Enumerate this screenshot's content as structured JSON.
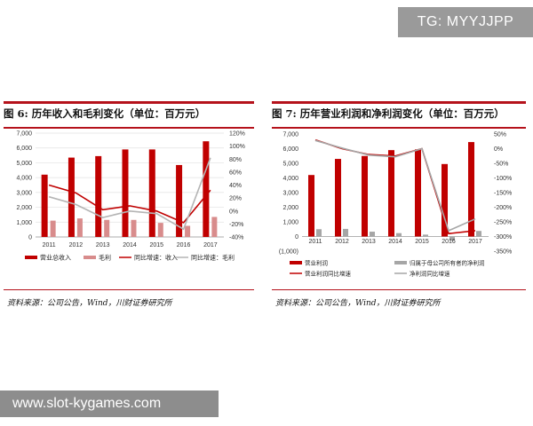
{
  "watermark_top": "TG: MYYJJPP",
  "watermark_bottom": "www.slot-kygames.com",
  "chart_data": [
    {
      "type": "bar",
      "title": "图 6:  历年收入和毛利变化（单位：百万元）",
      "source": "资料来源：公司公告，Wind，川财证券研究所",
      "categories": [
        "2011",
        "2012",
        "2013",
        "2014",
        "2015",
        "2016",
        "2017"
      ],
      "y_ticks": [
        "0",
        "1,000",
        "2,000",
        "3,000",
        "4,000",
        "5,000",
        "6,000",
        "7,000"
      ],
      "y2_ticks": [
        "-40%",
        "-20%",
        "0%",
        "20%",
        "40%",
        "60%",
        "80%",
        "100%",
        "120%"
      ],
      "ylim": [
        0,
        7000
      ],
      "y2lim": [
        -40,
        120
      ],
      "grid": true,
      "legend_position": "bottom",
      "colors": {
        "bar1": "#c00000",
        "bar2": "#d88c8c",
        "line1": "#c00000",
        "line2": "#b4b4b4"
      },
      "series": [
        {
          "name": "营业总收入",
          "kind": "bar",
          "axis": "left",
          "values": [
            4200,
            5350,
            5450,
            5900,
            5900,
            4850,
            6450
          ]
        },
        {
          "name": "毛利",
          "kind": "bar",
          "axis": "left",
          "values": [
            1100,
            1250,
            1150,
            1150,
            950,
            750,
            1350
          ]
        },
        {
          "name": "同比增速：收入",
          "kind": "line",
          "axis": "right",
          "values": [
            40,
            28,
            2,
            8,
            0,
            -18,
            32
          ]
        },
        {
          "name": "同比增速：毛利",
          "kind": "line",
          "axis": "right",
          "values": [
            22,
            10,
            -10,
            0,
            -4,
            -28,
            82
          ]
        }
      ]
    },
    {
      "type": "bar",
      "title": "图 7:  历年营业利润和净利润变化（单位：百万元）",
      "source": "资料来源：公司公告，Wind，川财证券研究所",
      "categories": [
        "2011",
        "2012",
        "2013",
        "2014",
        "2015",
        "2016",
        "2017"
      ],
      "y_ticks": [
        "(1,000)",
        "0",
        "1,000",
        "2,000",
        "3,000",
        "4,000",
        "5,000",
        "6,000",
        "7,000"
      ],
      "y2_ticks": [
        "-350%",
        "-300%",
        "-250%",
        "-200%",
        "-150%",
        "-100%",
        "-50%",
        "0%",
        "50%"
      ],
      "ylim": [
        -1000,
        7000
      ],
      "y2lim": [
        -350,
        50
      ],
      "grid": false,
      "legend_position": "bottom",
      "colors": {
        "bar1": "#c00000",
        "bar2": "#a6a6a6",
        "line1": "#c00000",
        "line2": "#a6a6a6"
      },
      "series": [
        {
          "name": "营业利润",
          "kind": "bar",
          "axis": "left",
          "values": [
            4200,
            5300,
            5500,
            5900,
            5950,
            4950,
            6450
          ]
        },
        {
          "name": "归属于母公司所有者的净利润",
          "kind": "bar",
          "axis": "left",
          "values": [
            500,
            520,
            330,
            230,
            130,
            -280,
            380
          ]
        },
        {
          "name": "营业利润同比增速",
          "kind": "line",
          "axis": "right",
          "values": [
            30,
            0,
            -20,
            -25,
            0,
            -290,
            -280
          ]
        },
        {
          "name": "净利润同比增速",
          "kind": "line",
          "axis": "right",
          "values": [
            28,
            2,
            -22,
            -28,
            0,
            -280,
            -240
          ]
        }
      ]
    }
  ]
}
